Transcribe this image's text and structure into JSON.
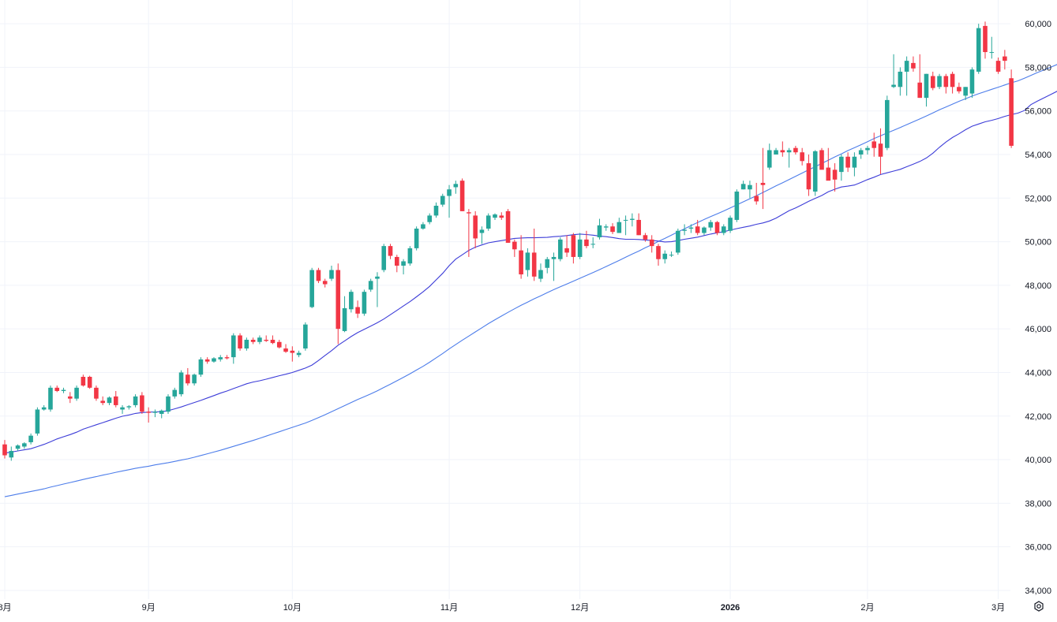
{
  "chart_data": {
    "type": "candlestick",
    "y_axis": {
      "side": "right",
      "ticks": [
        34000,
        36000,
        38000,
        40000,
        42000,
        44000,
        46000,
        48000,
        50000,
        52000,
        54000,
        56000,
        58000,
        60000
      ],
      "tick_labels": [
        "34,000",
        "36,000",
        "38,000",
        "40,000",
        "42,000",
        "44,000",
        "46,000",
        "48,000",
        "50,000",
        "52,000",
        "54,000",
        "56,000",
        "58,000",
        "60,000"
      ],
      "range": [
        33600,
        60800
      ]
    },
    "x_axis": {
      "labels": [
        {
          "text": "8月",
          "index": 0,
          "bold": false
        },
        {
          "text": "9月",
          "index": 22,
          "bold": false
        },
        {
          "text": "10月",
          "index": 44,
          "bold": false
        },
        {
          "text": "11月",
          "index": 68,
          "bold": false
        },
        {
          "text": "12月",
          "index": 88,
          "bold": false
        },
        {
          "text": "2026",
          "index": 111,
          "bold": true
        },
        {
          "text": "2月",
          "index": 132,
          "bold": false
        },
        {
          "text": "3月",
          "index": 152,
          "bold": false
        }
      ]
    },
    "grid": true,
    "colors": {
      "up": "#26a69a",
      "down": "#f23645",
      "ma_short": "#3d3dd8",
      "ma_long": "#4d7dea",
      "grid": "#f0f3fa",
      "axis_text": "#131722"
    },
    "candles": [
      [
        40700,
        40900,
        40050,
        40200
      ],
      [
        40100,
        40600,
        39950,
        40400
      ],
      [
        40500,
        40700,
        40400,
        40650
      ],
      [
        40600,
        40800,
        40500,
        40750
      ],
      [
        40800,
        41200,
        40700,
        41100
      ],
      [
        41200,
        42400,
        41100,
        42300
      ],
      [
        42300,
        42500,
        42250,
        42400
      ],
      [
        42300,
        43400,
        42200,
        43300
      ],
      [
        43300,
        43400,
        43100,
        43150
      ],
      [
        43150,
        43300,
        43050,
        43200
      ],
      [
        42900,
        43100,
        42600,
        42800
      ],
      [
        42800,
        43400,
        42700,
        43300
      ],
      [
        43800,
        43900,
        43350,
        43400
      ],
      [
        43800,
        43850,
        43250,
        43300
      ],
      [
        43300,
        43400,
        42700,
        42800
      ],
      [
        42700,
        42900,
        42500,
        42600
      ],
      [
        42600,
        42900,
        42500,
        42850
      ],
      [
        42900,
        43150,
        42400,
        42500
      ],
      [
        42300,
        42500,
        42100,
        42400
      ],
      [
        42400,
        42500,
        42300,
        42450
      ],
      [
        42500,
        43000,
        42400,
        42900
      ],
      [
        42950,
        43100,
        42100,
        42200
      ],
      [
        42200,
        42400,
        41700,
        42150
      ],
      [
        42150,
        42300,
        41950,
        42200
      ],
      [
        42100,
        42300,
        41900,
        42250
      ],
      [
        42200,
        43000,
        42100,
        42900
      ],
      [
        42900,
        43300,
        42800,
        43200
      ],
      [
        43000,
        44100,
        42900,
        44000
      ],
      [
        43900,
        44200,
        43400,
        43500
      ],
      [
        43500,
        43950,
        43400,
        43900
      ],
      [
        43900,
        44700,
        43800,
        44600
      ],
      [
        44600,
        44700,
        44400,
        44500
      ],
      [
        44500,
        44700,
        44450,
        44650
      ],
      [
        44600,
        44800,
        44500,
        44700
      ],
      [
        44700,
        44800,
        44600,
        44650
      ],
      [
        44700,
        45800,
        44400,
        45700
      ],
      [
        45700,
        45800,
        45000,
        45100
      ],
      [
        45100,
        45600,
        45000,
        45500
      ],
      [
        45500,
        45600,
        45300,
        45400
      ],
      [
        45400,
        45700,
        45300,
        45600
      ],
      [
        45500,
        45700,
        45400,
        45450
      ],
      [
        45500,
        45700,
        45300,
        45350
      ],
      [
        45400,
        45500,
        45100,
        45150
      ],
      [
        45100,
        45300,
        44900,
        44950
      ],
      [
        45000,
        45200,
        44500,
        44900
      ],
      [
        44800,
        45000,
        44700,
        44900
      ],
      [
        45100,
        46300,
        45000,
        46200
      ],
      [
        47000,
        48800,
        46950,
        48700
      ],
      [
        48700,
        48800,
        48100,
        48200
      ],
      [
        48200,
        48300,
        47900,
        48050
      ],
      [
        48300,
        48900,
        48200,
        48700
      ],
      [
        48700,
        49000,
        45300,
        46000
      ],
      [
        45900,
        47500,
        45850,
        46950
      ],
      [
        46900,
        47800,
        46750,
        47700
      ],
      [
        47000,
        47300,
        46500,
        46700
      ],
      [
        46700,
        47800,
        46600,
        47700
      ],
      [
        47800,
        48300,
        47700,
        48200
      ],
      [
        48300,
        48600,
        47000,
        48400
      ],
      [
        48700,
        49900,
        48600,
        49800
      ],
      [
        49800,
        49900,
        49200,
        49350
      ],
      [
        49300,
        49400,
        48600,
        48900
      ],
      [
        48900,
        49200,
        48500,
        49100
      ],
      [
        49000,
        49800,
        48900,
        49700
      ],
      [
        49700,
        50700,
        49600,
        50600
      ],
      [
        50600,
        50900,
        50550,
        50800
      ],
      [
        50900,
        51300,
        50800,
        51200
      ],
      [
        51200,
        51800,
        51100,
        51650
      ],
      [
        51700,
        52200,
        51600,
        52100
      ],
      [
        52100,
        52600,
        51100,
        52400
      ],
      [
        52500,
        52800,
        52200,
        52650
      ],
      [
        52800,
        52900,
        51400,
        51400
      ],
      [
        51350,
        51500,
        49300,
        51300
      ],
      [
        51200,
        51400,
        49700,
        50150
      ],
      [
        50400,
        50700,
        49900,
        50550
      ],
      [
        50600,
        51300,
        50500,
        51200
      ],
      [
        51100,
        51300,
        51000,
        51250
      ],
      [
        51200,
        51350,
        51000,
        51100
      ],
      [
        51400,
        51500,
        49950,
        49950
      ],
      [
        50000,
        50100,
        49300,
        49650
      ],
      [
        49600,
        50300,
        48300,
        48500
      ],
      [
        48700,
        49700,
        48400,
        49500
      ],
      [
        49500,
        50600,
        48200,
        48400
      ],
      [
        48300,
        49000,
        48150,
        48700
      ],
      [
        48800,
        49300,
        48550,
        49200
      ],
      [
        49200,
        49500,
        48200,
        49300
      ],
      [
        49200,
        50200,
        49100,
        50100
      ],
      [
        49700,
        50300,
        49300,
        49500
      ],
      [
        50300,
        50400,
        49000,
        49300
      ],
      [
        49300,
        50400,
        49200,
        50100
      ],
      [
        50100,
        50500,
        49700,
        49800
      ],
      [
        49900,
        50200,
        49700,
        49900
      ],
      [
        50200,
        51050,
        50100,
        50750
      ],
      [
        50650,
        50800,
        50500,
        50700
      ],
      [
        50700,
        50850,
        50350,
        50450
      ],
      [
        50400,
        51100,
        50400,
        50900
      ],
      [
        51000,
        51200,
        50300,
        51000
      ],
      [
        51000,
        51300,
        50700,
        51050
      ],
      [
        51000,
        51300,
        50300,
        50300
      ],
      [
        50300,
        50400,
        50000,
        50100
      ],
      [
        50100,
        50300,
        49500,
        49800
      ],
      [
        49800,
        49900,
        48900,
        49200
      ],
      [
        49200,
        49600,
        49000,
        49450
      ],
      [
        49400,
        49550,
        49300,
        49400
      ],
      [
        49500,
        50600,
        49400,
        50500
      ],
      [
        50500,
        50800,
        50300,
        50550
      ],
      [
        50600,
        50800,
        50400,
        50650
      ],
      [
        50700,
        51000,
        50300,
        50400
      ],
      [
        50400,
        50700,
        50300,
        50650
      ],
      [
        50650,
        51000,
        50500,
        50900
      ],
      [
        50900,
        50950,
        50300,
        50400
      ],
      [
        50400,
        50800,
        50300,
        50700
      ],
      [
        50500,
        51200,
        50400,
        51100
      ],
      [
        51000,
        52400,
        50900,
        52300
      ],
      [
        52400,
        52800,
        52400,
        52650
      ],
      [
        52400,
        52800,
        52000,
        52600
      ],
      [
        52100,
        52700,
        51700,
        51850
      ],
      [
        52700,
        54300,
        51500,
        52600
      ],
      [
        53400,
        54500,
        53300,
        54200
      ],
      [
        54000,
        54300,
        54000,
        54200
      ],
      [
        54200,
        54600,
        53900,
        54100
      ],
      [
        54100,
        54300,
        53400,
        54200
      ],
      [
        54300,
        54400,
        54000,
        54100
      ],
      [
        54100,
        54300,
        53500,
        53700
      ],
      [
        53600,
        54000,
        52100,
        52400
      ],
      [
        52300,
        54200,
        52100,
        54150
      ],
      [
        54200,
        54300,
        53350,
        53300
      ],
      [
        53400,
        54300,
        52900,
        52800
      ],
      [
        53300,
        53600,
        52300,
        52850
      ],
      [
        53200,
        54000,
        52800,
        53900
      ],
      [
        53900,
        54100,
        53200,
        53400
      ],
      [
        53400,
        54100,
        53000,
        53900
      ],
      [
        54000,
        54300,
        53800,
        54200
      ],
      [
        54200,
        54400,
        54000,
        54300
      ],
      [
        54600,
        55000,
        53900,
        54300
      ],
      [
        54500,
        55200,
        53100,
        53900
      ],
      [
        54300,
        56700,
        54200,
        56500
      ],
      [
        57100,
        58600,
        57050,
        57200
      ],
      [
        57100,
        58000,
        56700,
        57800
      ],
      [
        57800,
        58500,
        56700,
        58300
      ],
      [
        58200,
        58500,
        57800,
        57950
      ],
      [
        57300,
        58600,
        56600,
        56600
      ],
      [
        56600,
        57700,
        56200,
        57700
      ],
      [
        57600,
        57800,
        56950,
        57050
      ],
      [
        57100,
        57700,
        57000,
        57600
      ],
      [
        57600,
        57700,
        56800,
        57100
      ],
      [
        57700,
        57800,
        56800,
        57100
      ],
      [
        57100,
        57300,
        56800,
        56900
      ],
      [
        56700,
        57100,
        56500,
        57100
      ],
      [
        56800,
        58000,
        56600,
        57900
      ],
      [
        57800,
        60000,
        57700,
        59800
      ],
      [
        59900,
        60100,
        58400,
        58700
      ],
      [
        58700,
        59400,
        58400,
        58700
      ],
      [
        58300,
        58450,
        57700,
        57800
      ],
      [
        58500,
        58800,
        57900,
        58300
      ],
      [
        57500,
        57900,
        54300,
        54400
      ]
    ],
    "ma_short": [
      40300,
      40350,
      40400,
      40450,
      40500,
      40600,
      40700,
      40820,
      40950,
      41050,
      41150,
      41260,
      41400,
      41500,
      41600,
      41700,
      41800,
      41900,
      41990,
      42050,
      42120,
      42160,
      42180,
      42190,
      42200,
      42250,
      42330,
      42420,
      42520,
      42620,
      42720,
      42830,
      42940,
      43050,
      43150,
      43260,
      43370,
      43480,
      43560,
      43620,
      43690,
      43770,
      43850,
      43920,
      44000,
      44100,
      44200,
      44340,
      44550,
      44780,
      45000,
      45250,
      45450,
      45650,
      45830,
      45980,
      46130,
      46280,
      46450,
      46650,
      46850,
      47050,
      47250,
      47470,
      47700,
      47950,
      48250,
      48550,
      48900,
      49200,
      49400,
      49600,
      49750,
      49850,
      49950,
      50000,
      50050,
      50100,
      50150,
      50170,
      50180,
      50180,
      50190,
      50200,
      50230,
      50250,
      50280,
      50320,
      50350,
      50330,
      50300,
      50260,
      50230,
      50190,
      50140,
      50110,
      50110,
      50100,
      50080,
      50060,
      50030,
      49990,
      50000,
      50050,
      50110,
      50160,
      50210,
      50280,
      50350,
      50410,
      50460,
      50530,
      50600,
      50660,
      50720,
      50800,
      50860,
      50950,
      51080,
      51250,
      51420,
      51550,
      51700,
      51850,
      51990,
      52120,
      52290,
      52410,
      52510,
      52550,
      52600,
      52720,
      52850,
      52960,
      53080,
      53160,
      53240,
      53320,
      53440,
      53560,
      53680,
      53840,
      54060,
      54330,
      54570,
      54780,
      54950,
      55140,
      55300,
      55400,
      55500,
      55570,
      55650,
      55750,
      55830,
      55900,
      56020,
      56290,
      56450,
      56600,
      56750,
      56900,
      57040
    ],
    "ma_long": [
      38300,
      38360,
      38420,
      38480,
      38540,
      38600,
      38660,
      38740,
      38810,
      38880,
      38950,
      39020,
      39090,
      39160,
      39220,
      39290,
      39350,
      39420,
      39480,
      39540,
      39600,
      39650,
      39700,
      39760,
      39810,
      39860,
      39920,
      39980,
      40040,
      40110,
      40190,
      40270,
      40350,
      40430,
      40520,
      40610,
      40700,
      40790,
      40880,
      40980,
      41080,
      41180,
      41280,
      41380,
      41480,
      41580,
      41680,
      41800,
      41930,
      42060,
      42200,
      42340,
      42480,
      42620,
      42760,
      42890,
      43020,
      43160,
      43310,
      43460,
      43620,
      43780,
      43940,
      44110,
      44280,
      44470,
      44670,
      44870,
      45080,
      45280,
      45480,
      45670,
      45860,
      46050,
      46240,
      46420,
      46590,
      46760,
      46920,
      47080,
      47230,
      47380,
      47520,
      47660,
      47800,
      47930,
      48060,
      48190,
      48320,
      48450,
      48580,
      48720,
      48860,
      49000,
      49140,
      49290,
      49430,
      49570,
      49720,
      49860,
      50010,
      50150,
      50300,
      50450,
      50590,
      50740,
      50880,
      51020,
      51150,
      51280,
      51410,
      51550,
      51690,
      51830,
      51970,
      52110,
      52260,
      52410,
      52560,
      52700,
      52850,
      53000,
      53150,
      53300,
      53440,
      53590,
      53740,
      53890,
      54030,
      54180,
      54310,
      54450,
      54590,
      54730,
      54860,
      54990,
      55110,
      55240,
      55370,
      55500,
      55630,
      55770,
      55910,
      56050,
      56180,
      56310,
      56440,
      56560,
      56680,
      56790,
      56890,
      56990,
      57090,
      57190,
      57290,
      57380,
      57500,
      57630,
      57760,
      57880,
      58000,
      58130,
      58260,
      58390
    ],
    "ma_long_values_note": ""
  },
  "ui": {
    "settings_icon": "gear-icon"
  }
}
